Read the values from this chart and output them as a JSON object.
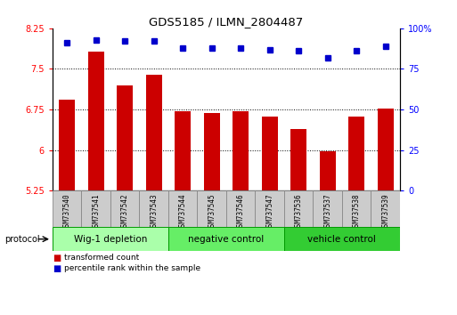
{
  "title": "GDS5185 / ILMN_2804487",
  "samples": [
    "GSM737540",
    "GSM737541",
    "GSM737542",
    "GSM737543",
    "GSM737544",
    "GSM737545",
    "GSM737546",
    "GSM737547",
    "GSM737536",
    "GSM737537",
    "GSM737538",
    "GSM737539"
  ],
  "bar_values": [
    6.93,
    7.82,
    7.2,
    7.4,
    6.72,
    6.69,
    6.72,
    6.62,
    6.38,
    5.98,
    6.62,
    6.76
  ],
  "percentile_values": [
    91,
    93,
    92,
    92,
    88,
    88,
    88,
    87,
    86,
    82,
    86,
    89
  ],
  "ylim_left": [
    5.25,
    8.25
  ],
  "ylim_right": [
    0,
    100
  ],
  "yticks_left": [
    5.25,
    6.0,
    6.75,
    7.5,
    8.25
  ],
  "ytick_labels_left": [
    "5.25",
    "6",
    "6.75",
    "7.5",
    "8.25"
  ],
  "yticks_right": [
    0,
    25,
    50,
    75,
    100
  ],
  "ytick_labels_right": [
    "0",
    "25",
    "50",
    "75",
    "100%"
  ],
  "bar_color": "#CC0000",
  "dot_color": "#0000CC",
  "groups": [
    {
      "label": "Wig-1 depletion",
      "count": 4,
      "color": "#AAFFAA"
    },
    {
      "label": "negative control",
      "count": 4,
      "color": "#66EE66"
    },
    {
      "label": "vehicle control",
      "count": 4,
      "color": "#33CC33"
    }
  ],
  "protocol_label": "protocol",
  "legend_items": [
    {
      "label": "transformed count",
      "color": "#CC0000"
    },
    {
      "label": "percentile rank within the sample",
      "color": "#0000CC"
    }
  ],
  "fig_width": 5.13,
  "fig_height": 3.54,
  "dpi": 100
}
